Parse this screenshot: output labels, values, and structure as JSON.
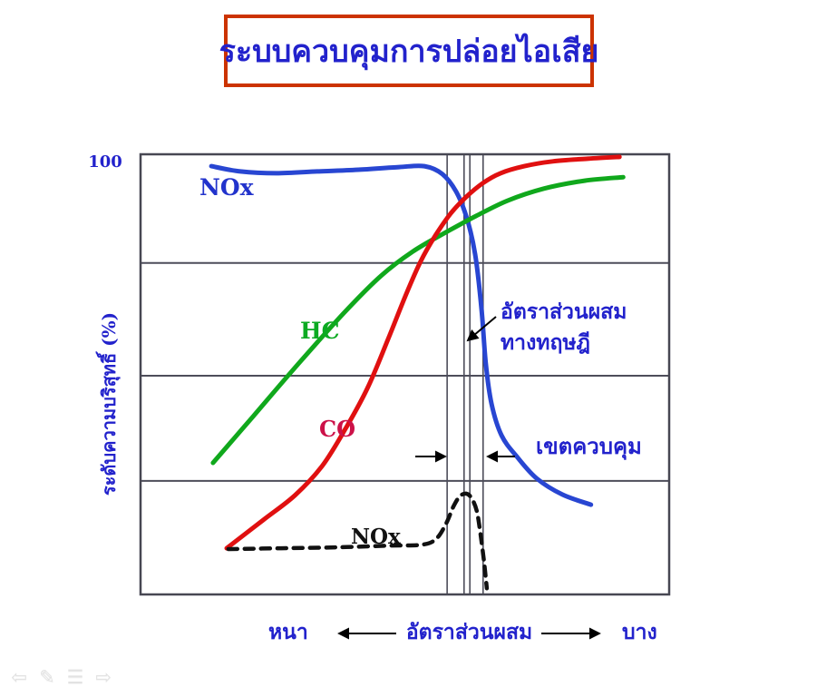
{
  "slide": {
    "title": "ระบบควบคุมการปล่อยไอเสีย",
    "title_color": "#2222cc",
    "title_border_color": "#cc3300"
  },
  "chart": {
    "y_top_tick": "100",
    "y_axis_label": "ระดับความบริสุทธิ์ (%)",
    "x_left_label": "หนา",
    "x_center_label": "อัตราส่วนผสม",
    "x_right_label": "บาง",
    "curve_labels": {
      "nox_top": "NOx",
      "hc": "HC",
      "co": "CO",
      "nox_bottom": "NOx"
    },
    "annotations": {
      "stoich_line1": "อัตราส่วนผสม",
      "stoich_line2": "ทางทฤษฎี",
      "control_zone": "เขตควบคุม"
    },
    "colors": {
      "nox_curve": "#2846d2",
      "hc_curve": "#10a81c",
      "co_curve": "#e01010",
      "nox_engine_curve": "#111111",
      "grid": "#4d4d5a",
      "frame": "#474752"
    }
  },
  "nav": {
    "prev_icon": "⇦",
    "pen_icon": "✎",
    "menu_icon": "☰",
    "next_icon": "⇨"
  },
  "chart_data": {
    "type": "line",
    "title": "ระบบควบคุมการปล่อยไอเสีย",
    "xlabel": "อัตราส่วนผสม (หนา → บาง)",
    "ylabel": "ระดับความบริสุทธิ์ (%)",
    "ylim": [
      0,
      100
    ],
    "x_units": "relative percent of axis (rich=0, lean=100)",
    "grid": true,
    "h_gridlines_y_pct": [
      25.8,
      49.7,
      75.3
    ],
    "v_reference_lines_x_pct": [
      58.0,
      61.2,
      62.3,
      64.8
    ],
    "series": [
      {
        "id": "nox",
        "name": "NOx (conversion)",
        "color": "#2846d2",
        "width": 5,
        "dashed": false,
        "points": [
          [
            13.4,
            97.3
          ],
          [
            18.9,
            96.1
          ],
          [
            25.7,
            95.7
          ],
          [
            33.4,
            96.1
          ],
          [
            41.2,
            96.5
          ],
          [
            48.9,
            97.1
          ],
          [
            53.7,
            97.3
          ],
          [
            57.1,
            95.5
          ],
          [
            59.7,
            91.5
          ],
          [
            61.7,
            85.6
          ],
          [
            63.3,
            77.3
          ],
          [
            64.5,
            64.9
          ],
          [
            65.3,
            52.6
          ],
          [
            66.4,
            43.3
          ],
          [
            68.3,
            36.1
          ],
          [
            71.2,
            31.3
          ],
          [
            74.9,
            26.4
          ],
          [
            79.8,
            22.7
          ],
          [
            85.2,
            20.4
          ]
        ]
      },
      {
        "id": "hc",
        "name": "HC",
        "color": "#10a81c",
        "width": 5,
        "dashed": false,
        "points": [
          [
            13.7,
            29.9
          ],
          [
            21.4,
            40.6
          ],
          [
            30.0,
            52.6
          ],
          [
            38.6,
            64.1
          ],
          [
            45.5,
            72.4
          ],
          [
            51.5,
            77.9
          ],
          [
            57.5,
            82.1
          ],
          [
            63.5,
            86.0
          ],
          [
            69.5,
            89.5
          ],
          [
            76.3,
            92.2
          ],
          [
            84.0,
            94.0
          ],
          [
            91.3,
            94.8
          ]
        ]
      },
      {
        "id": "co",
        "name": "CO",
        "color": "#e01010",
        "width": 5,
        "dashed": false,
        "points": [
          [
            16.3,
            10.5
          ],
          [
            23.2,
            16.9
          ],
          [
            29.2,
            22.5
          ],
          [
            34.3,
            29.1
          ],
          [
            38.6,
            37.3
          ],
          [
            42.9,
            46.8
          ],
          [
            46.8,
            57.9
          ],
          [
            50.1,
            67.8
          ],
          [
            53.0,
            75.7
          ],
          [
            55.7,
            81.4
          ],
          [
            58.7,
            86.6
          ],
          [
            61.6,
            90.3
          ],
          [
            64.7,
            93.4
          ],
          [
            68.1,
            95.7
          ],
          [
            72.6,
            97.3
          ],
          [
            78.0,
            98.4
          ],
          [
            84.6,
            99.0
          ],
          [
            90.6,
            99.4
          ]
        ]
      },
      {
        "id": "nox_engine",
        "name": "NOx (engine-out, dashed)",
        "color": "#111111",
        "width": 4.5,
        "dashed": true,
        "points": [
          [
            16.6,
            10.3
          ],
          [
            26.6,
            10.5
          ],
          [
            36.9,
            10.7
          ],
          [
            47.2,
            11.1
          ],
          [
            53.2,
            11.3
          ],
          [
            55.9,
            12.6
          ],
          [
            57.8,
            16.1
          ],
          [
            59.2,
            20.0
          ],
          [
            60.4,
            22.3
          ],
          [
            61.6,
            22.9
          ],
          [
            62.6,
            21.9
          ],
          [
            63.6,
            19.0
          ],
          [
            64.3,
            13.8
          ],
          [
            65.0,
            7.2
          ],
          [
            65.5,
            1.4
          ]
        ]
      }
    ],
    "annotations_text": [
      "อัตราส่วนผสมทางทฤษฎี",
      "เขตควบคุม",
      "หนา",
      "อัตราส่วนผสม",
      "บาง",
      "100"
    ]
  }
}
